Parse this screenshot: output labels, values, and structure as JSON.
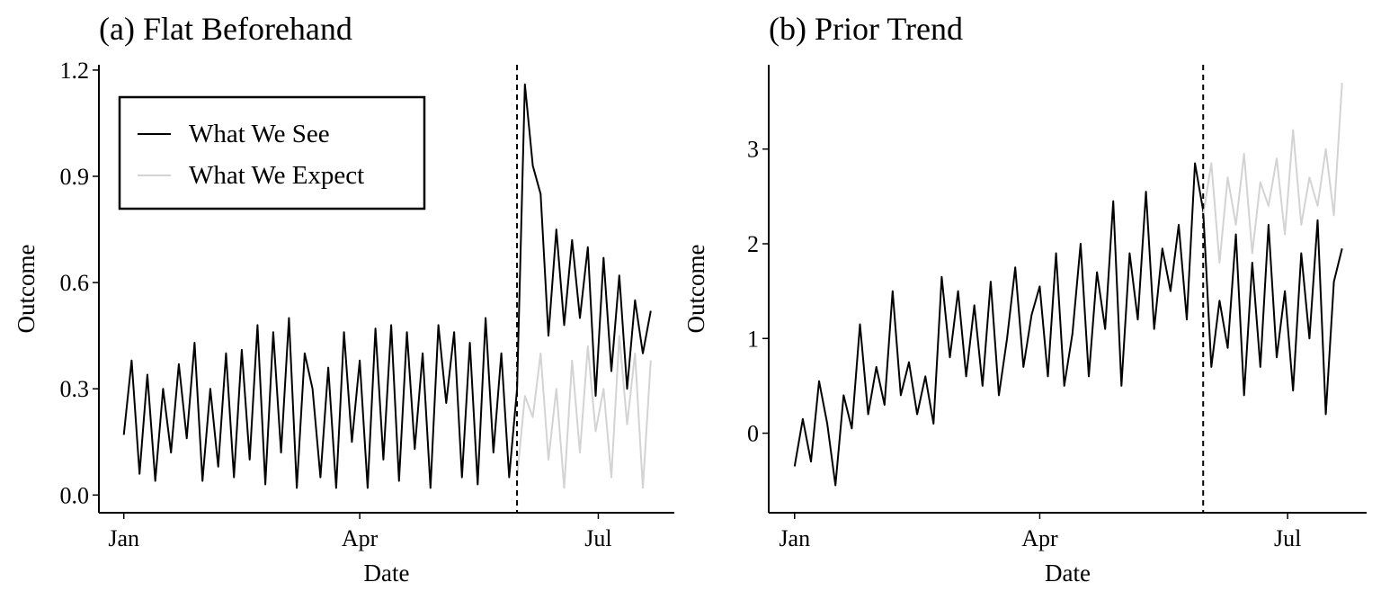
{
  "chart_data": [
    {
      "type": "line",
      "title": "(a) Flat Beforehand",
      "x_label": "Date",
      "y_label": "Outcome",
      "x": [
        0,
        3,
        6,
        9,
        12,
        15,
        18,
        21,
        24,
        27,
        30,
        33,
        36,
        39,
        42,
        45,
        48,
        51,
        54,
        57,
        60,
        63,
        66,
        69,
        72,
        75,
        78,
        81,
        84,
        87,
        90,
        93,
        96,
        99,
        102,
        105,
        108,
        111,
        114,
        117,
        120,
        123,
        126,
        129,
        132,
        135,
        138,
        141,
        144,
        147,
        150,
        153,
        156,
        159,
        162,
        165,
        168,
        171,
        174,
        177,
        180,
        183,
        186,
        189,
        192,
        195,
        198,
        201
      ],
      "xlim": [
        -9.5,
        210
      ],
      "xticks": [
        {
          "value": 0,
          "label": "Jan"
        },
        {
          "value": 90,
          "label": "Apr"
        },
        {
          "value": 181,
          "label": "Jul"
        }
      ],
      "ylim": [
        -0.05,
        1.215
      ],
      "yticks": [
        {
          "value": 0,
          "label": "0.0"
        },
        0.3,
        0.6,
        0.9,
        1.2
      ],
      "vline": 150,
      "legend": "top-left",
      "series": [
        {
          "name": "What We See",
          "color": "#000000",
          "values": [
            0.17,
            0.38,
            0.06,
            0.34,
            0.04,
            0.3,
            0.12,
            0.37,
            0.16,
            0.43,
            0.04,
            0.3,
            0.08,
            0.4,
            0.05,
            0.41,
            0.1,
            0.48,
            0.03,
            0.46,
            0.12,
            0.5,
            0.02,
            0.4,
            0.3,
            0.05,
            0.36,
            0.02,
            0.46,
            0.15,
            0.38,
            0.02,
            0.47,
            0.1,
            0.48,
            0.04,
            0.46,
            0.13,
            0.4,
            0.02,
            0.48,
            0.26,
            0.46,
            0.05,
            0.43,
            0.03,
            0.5,
            0.12,
            0.4,
            0.05,
            0.3,
            1.16,
            0.93,
            0.85,
            0.45,
            0.75,
            0.48,
            0.72,
            0.5,
            0.7,
            0.28,
            0.67,
            0.35,
            0.62,
            0.3,
            0.55,
            0.4,
            0.52
          ]
        },
        {
          "name": "What We Expect",
          "color": "#d3d3d3",
          "values": [
            null,
            null,
            null,
            null,
            null,
            null,
            null,
            null,
            null,
            null,
            null,
            null,
            null,
            null,
            null,
            null,
            null,
            null,
            null,
            null,
            null,
            null,
            null,
            null,
            null,
            null,
            null,
            null,
            null,
            null,
            null,
            null,
            null,
            null,
            null,
            null,
            null,
            null,
            null,
            null,
            null,
            null,
            null,
            null,
            null,
            null,
            null,
            null,
            null,
            null,
            0.05,
            0.28,
            0.22,
            0.4,
            0.1,
            0.3,
            0.02,
            0.38,
            0.12,
            0.42,
            0.18,
            0.3,
            0.05,
            0.45,
            0.2,
            0.4,
            0.02,
            0.38
          ]
        }
      ]
    },
    {
      "type": "line",
      "title": "(b) Prior Trend",
      "x_label": "Date",
      "y_label": "Outcome",
      "x": [
        0,
        3,
        6,
        9,
        12,
        15,
        18,
        21,
        24,
        27,
        30,
        33,
        36,
        39,
        42,
        45,
        48,
        51,
        54,
        57,
        60,
        63,
        66,
        69,
        72,
        75,
        78,
        81,
        84,
        87,
        90,
        93,
        96,
        99,
        102,
        105,
        108,
        111,
        114,
        117,
        120,
        123,
        126,
        129,
        132,
        135,
        138,
        141,
        144,
        147,
        150,
        153,
        156,
        159,
        162,
        165,
        168,
        171,
        174,
        177,
        180,
        183,
        186,
        189,
        192,
        195,
        198,
        201
      ],
      "xlim": [
        -9.5,
        210
      ],
      "xticks": [
        {
          "value": 0,
          "label": "Jan"
        },
        {
          "value": 90,
          "label": "Apr"
        },
        {
          "value": 181,
          "label": "Jul"
        }
      ],
      "ylim": [
        -0.84,
        3.89
      ],
      "yticks": [
        0,
        1,
        2,
        3
      ],
      "vline": 150,
      "series": [
        {
          "name": "What We See",
          "color": "#000000",
          "values": [
            -0.35,
            0.15,
            -0.3,
            0.55,
            0.1,
            -0.55,
            0.4,
            0.05,
            1.15,
            0.2,
            0.7,
            0.3,
            1.5,
            0.4,
            0.75,
            0.2,
            0.6,
            0.1,
            1.65,
            0.8,
            1.5,
            0.6,
            1.35,
            0.5,
            1.6,
            0.4,
            1.0,
            1.75,
            0.7,
            1.25,
            1.55,
            0.6,
            1.9,
            0.5,
            1.05,
            2.0,
            0.6,
            1.7,
            1.1,
            2.45,
            0.5,
            1.9,
            1.2,
            2.55,
            1.1,
            1.95,
            1.5,
            2.2,
            1.2,
            2.85,
            2.35,
            0.7,
            1.4,
            0.9,
            2.1,
            0.4,
            1.8,
            0.7,
            2.2,
            0.8,
            1.5,
            0.45,
            1.9,
            1.0,
            2.25,
            0.2,
            1.6,
            1.95
          ]
        },
        {
          "name": "What We Expect",
          "color": "#d3d3d3",
          "values": [
            null,
            null,
            null,
            null,
            null,
            null,
            null,
            null,
            null,
            null,
            null,
            null,
            null,
            null,
            null,
            null,
            null,
            null,
            null,
            null,
            null,
            null,
            null,
            null,
            null,
            null,
            null,
            null,
            null,
            null,
            null,
            null,
            null,
            null,
            null,
            null,
            null,
            null,
            null,
            null,
            null,
            null,
            null,
            null,
            null,
            null,
            null,
            null,
            null,
            null,
            2.3,
            2.85,
            1.8,
            2.7,
            2.2,
            2.95,
            1.9,
            2.65,
            2.4,
            2.9,
            2.1,
            3.2,
            2.2,
            2.7,
            2.4,
            3.0,
            2.3,
            3.7
          ]
        }
      ]
    }
  ]
}
